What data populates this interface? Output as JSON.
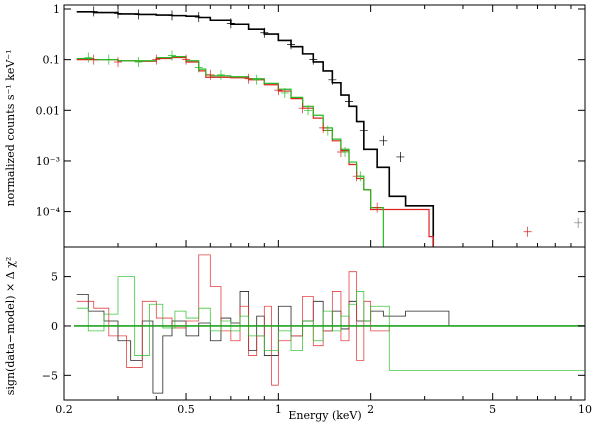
{
  "chart_data": [
    {
      "type": "line",
      "panel": "top",
      "xscale": "log",
      "yscale": "log",
      "xlim": [
        0.2,
        10
      ],
      "ylim": [
        2e-05,
        1.2
      ],
      "ylabel": "normalized counts s⁻¹ keV⁻¹",
      "xlabel": "",
      "grid": false,
      "legend": "none",
      "yticks": [
        {
          "v": 1,
          "label": "1"
        },
        {
          "v": 0.1,
          "label": "0.1"
        },
        {
          "v": 0.01,
          "label": "0.01"
        },
        {
          "v": 0.001,
          "label": "10⁻³"
        },
        {
          "v": 0.0001,
          "label": "10⁻⁴"
        }
      ],
      "series": [
        {
          "color": "#000000",
          "x": [
            0.22,
            0.25,
            0.3,
            0.35,
            0.4,
            0.45,
            0.5,
            0.55,
            0.6,
            0.7,
            0.8,
            0.9,
            1.0,
            1.1,
            1.2,
            1.3,
            1.4,
            1.5,
            1.6,
            1.7,
            1.8,
            1.9,
            2.1,
            2.3,
            2.6,
            3.0,
            3.2
          ],
          "y": [
            0.88,
            0.85,
            0.8,
            0.78,
            0.76,
            0.74,
            0.72,
            0.68,
            0.6,
            0.5,
            0.4,
            0.32,
            0.24,
            0.18,
            0.13,
            0.09,
            0.06,
            0.035,
            0.02,
            0.012,
            0.006,
            0.0017,
            0.00075,
            0.0002,
            0.00013,
            0.00013,
            2e-05
          ]
        },
        {
          "color": "#dd2222",
          "x": [
            0.22,
            0.25,
            0.3,
            0.35,
            0.4,
            0.45,
            0.5,
            0.55,
            0.58,
            0.6,
            0.7,
            0.8,
            0.9,
            1.0,
            1.1,
            1.2,
            1.3,
            1.4,
            1.5,
            1.6,
            1.7,
            1.8,
            1.9,
            2.0,
            2.3,
            2.7,
            3.1,
            3.2
          ],
          "y": [
            0.1,
            0.1,
            0.095,
            0.093,
            0.105,
            0.11,
            0.09,
            0.06,
            0.045,
            0.045,
            0.044,
            0.04,
            0.032,
            0.024,
            0.017,
            0.011,
            0.007,
            0.004,
            0.0025,
            0.0016,
            0.00085,
            0.00045,
            0.00027,
            0.00011,
            0.00011,
            0.00011,
            3.2e-05,
            2e-05
          ]
        },
        {
          "color": "#22bb22",
          "x": [
            0.22,
            0.25,
            0.3,
            0.35,
            0.4,
            0.45,
            0.5,
            0.55,
            0.58,
            0.6,
            0.7,
            0.8,
            0.9,
            1.0,
            1.1,
            1.2,
            1.3,
            1.4,
            1.5,
            1.6,
            1.7,
            1.8,
            1.9,
            2.0,
            2.2
          ],
          "y": [
            0.105,
            0.1,
            0.095,
            0.095,
            0.11,
            0.115,
            0.095,
            0.065,
            0.05,
            0.048,
            0.046,
            0.042,
            0.034,
            0.026,
            0.018,
            0.012,
            0.008,
            0.0045,
            0.0027,
            0.0017,
            0.00095,
            0.0005,
            0.00027,
            0.00012,
            2e-05
          ]
        }
      ],
      "points": [
        {
          "color": "#000000",
          "x": [
            0.25,
            0.3,
            0.35,
            0.45,
            0.55,
            0.7,
            0.9,
            1.1,
            1.3,
            1.5,
            1.7,
            1.9,
            2.2,
            2.5
          ],
          "y": [
            0.9,
            0.82,
            0.78,
            0.75,
            0.69,
            0.52,
            0.34,
            0.2,
            0.1,
            0.04,
            0.015,
            0.004,
            0.0025,
            0.0012
          ]
        },
        {
          "color": "#dd2222",
          "x": [
            0.25,
            0.3,
            0.4,
            0.5,
            0.6,
            0.8,
            1.0,
            1.2,
            1.4,
            1.6,
            1.8,
            2.1,
            6.5
          ],
          "y": [
            0.1,
            0.09,
            0.1,
            0.1,
            0.05,
            0.042,
            0.025,
            0.011,
            0.0045,
            0.0015,
            0.0005,
            0.00012,
            4e-05
          ]
        },
        {
          "color": "#22bb22",
          "x": [
            0.24,
            0.28,
            0.35,
            0.45,
            0.55,
            0.65,
            0.85,
            1.05,
            1.25,
            1.45,
            1.65,
            1.85
          ],
          "y": [
            0.11,
            0.1,
            0.09,
            0.12,
            0.07,
            0.05,
            0.04,
            0.022,
            0.01,
            0.004,
            0.0015,
            0.0005
          ]
        },
        {
          "color": "#777777",
          "x": [
            9.5
          ],
          "y": [
            6e-05
          ]
        }
      ]
    },
    {
      "type": "line",
      "panel": "bottom",
      "xscale": "log",
      "xlim": [
        0.2,
        10
      ],
      "ylim": [
        -7.5,
        8
      ],
      "xlabel": "Energy (keV)",
      "ylabel": "sign(data−model) × Δ χ²",
      "grid": false,
      "legend": "none",
      "xticks": [
        {
          "v": 0.2,
          "label": "0.2"
        },
        {
          "v": 0.5,
          "label": "0.5"
        },
        {
          "v": 1,
          "label": "1"
        },
        {
          "v": 2,
          "label": "2"
        },
        {
          "v": 5,
          "label": "5"
        },
        {
          "v": 10,
          "label": "10"
        }
      ],
      "yticks": [
        {
          "v": 5,
          "label": "5"
        },
        {
          "v": 0,
          "label": "0"
        },
        {
          "v": -5,
          "label": "−5"
        }
      ],
      "series": [
        {
          "color": "#000000",
          "x": [
            0.22,
            0.24,
            0.27,
            0.3,
            0.33,
            0.36,
            0.39,
            0.42,
            0.45,
            0.5,
            0.55,
            0.6,
            0.65,
            0.7,
            0.75,
            0.8,
            0.85,
            0.9,
            1.0,
            1.1,
            1.2,
            1.3,
            1.4,
            1.5,
            1.6,
            1.7,
            1.8,
            2.0,
            2.2,
            2.6,
            3.0,
            3.6
          ],
          "y": [
            3.2,
            1.5,
            0.5,
            -1.5,
            -3.5,
            0.5,
            -6.8,
            -1.0,
            0.5,
            -1.0,
            0.3,
            -1.5,
            0.8,
            0.3,
            3.5,
            -2.5,
            1.0,
            -3.0,
            2.0,
            -1.0,
            0.5,
            2.5,
            -0.5,
            1.5,
            -0.3,
            2.5,
            0.5,
            1.5,
            1.0,
            1.5,
            1.5,
            0
          ]
        },
        {
          "color": "#dd2222",
          "x": [
            0.22,
            0.25,
            0.28,
            0.32,
            0.36,
            0.4,
            0.45,
            0.5,
            0.55,
            0.6,
            0.65,
            0.7,
            0.75,
            0.8,
            0.85,
            0.9,
            0.95,
            1.0,
            1.1,
            1.2,
            1.3,
            1.4,
            1.5,
            1.6,
            1.7,
            1.8,
            1.9,
            2.0,
            2.3
          ],
          "y": [
            2.5,
            1.8,
            -1.0,
            -4.2,
            2.5,
            0.8,
            -0.2,
            0.5,
            7.2,
            4.0,
            -0.5,
            -1.5,
            2.0,
            -3.0,
            -1.0,
            2.0,
            -6.0,
            -1.5,
            -1.0,
            3.0,
            -2.0,
            -0.5,
            3.5,
            -1.5,
            5.5,
            -3.5,
            2.5,
            -0.5,
            0
          ]
        },
        {
          "color": "#22bb22",
          "x": [
            0.22,
            0.24,
            0.27,
            0.3,
            0.34,
            0.38,
            0.42,
            0.46,
            0.5,
            0.55,
            0.6,
            0.65,
            0.7,
            0.75,
            0.8,
            0.9,
            1.0,
            1.1,
            1.2,
            1.3,
            1.4,
            1.5,
            1.6,
            1.7,
            1.8,
            1.9,
            2.0,
            2.3,
            10
          ],
          "y": [
            1.8,
            -0.5,
            1.2,
            5.0,
            -3.0,
            2.2,
            -0.2,
            1.5,
            0.8,
            1.8,
            -0.5,
            0.5,
            -0.5,
            1.0,
            -1.0,
            -2.5,
            -0.5,
            -2.5,
            0.5,
            -1.5,
            1.5,
            -0.5,
            1.0,
            2.2,
            3.5,
            0.5,
            2.0,
            -4.5,
            -4.5
          ]
        }
      ],
      "model": [
        {
          "color": "#000000",
          "y": 0
        },
        {
          "color": "#22bb22",
          "y": 0
        }
      ]
    }
  ]
}
